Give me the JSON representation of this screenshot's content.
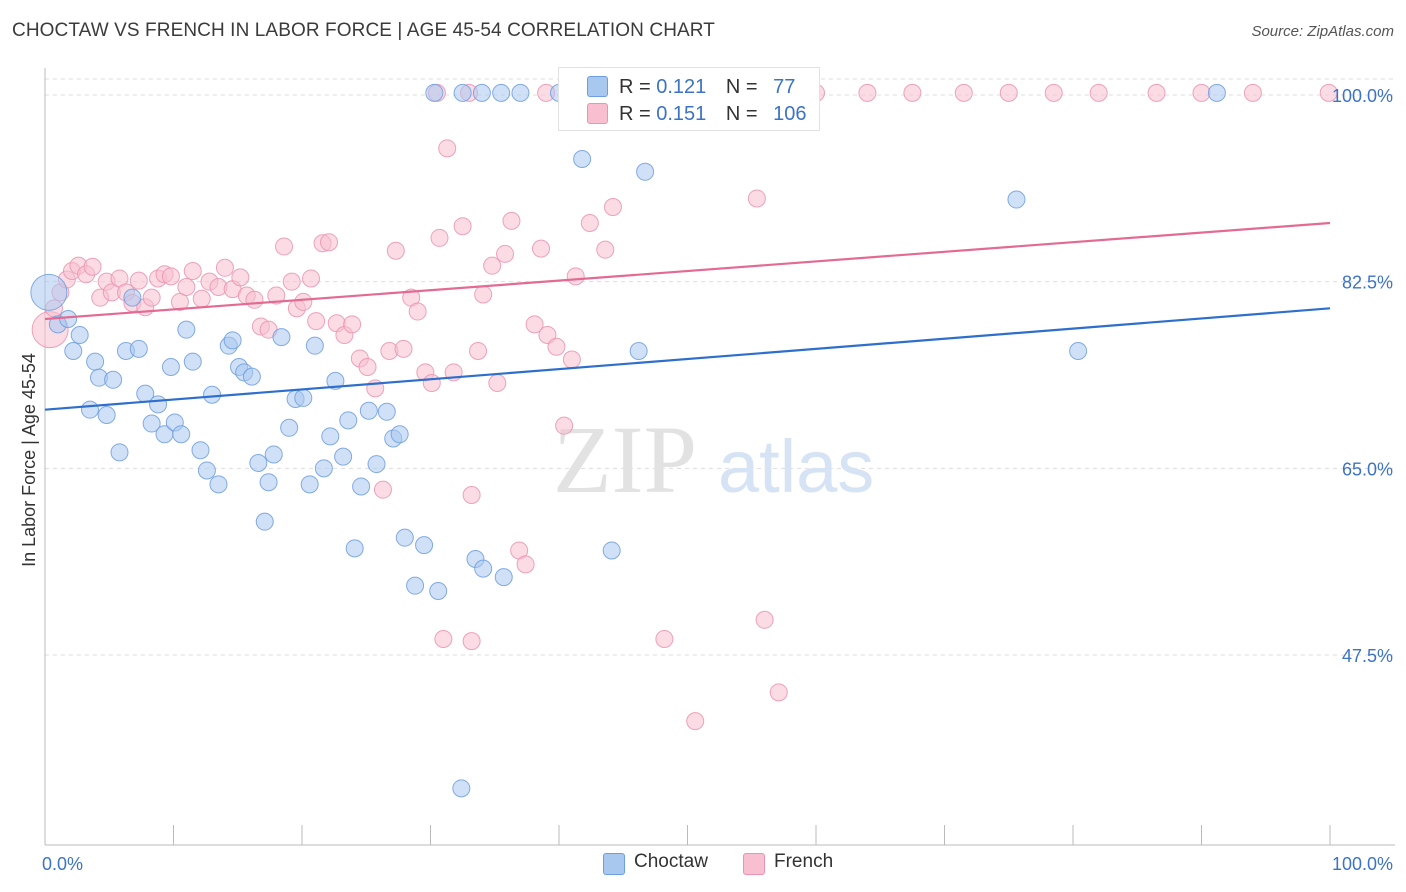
{
  "header": {
    "title": "CHOCTAW VS FRENCH IN LABOR FORCE | AGE 45-54 CORRELATION CHART",
    "source": "Source: ZipAtlas.com"
  },
  "watermark": {
    "zip": "ZIP",
    "atlas": "atlas"
  },
  "legend": {
    "choctaw": {
      "r_label": "R =",
      "r_value": "0.121",
      "n_label": "N =",
      "n_value": "77"
    },
    "french": {
      "r_label": "R =",
      "r_value": "0.151",
      "n_label": "N =",
      "n_value": "106"
    }
  },
  "bottom_legend": {
    "choctaw": "Choctaw",
    "french": "French"
  },
  "colors": {
    "choctaw_fill": "#a9c8f0",
    "choctaw_stroke": "#6d9ee0",
    "choctaw_line": "#2f6fcc",
    "french_fill": "#f7bfd0",
    "french_stroke": "#eb93b0",
    "french_line": "#e36b93",
    "tick_label": "#3d73c5",
    "grid": "#dddddd"
  },
  "chart_data": {
    "type": "scatter",
    "title": "CHOCTAW VS FRENCH IN LABOR FORCE | AGE 45-54 CORRELATION CHART",
    "xlabel": "",
    "ylabel": "In Labor Force | Age 45-54",
    "xlim": [
      0,
      100
    ],
    "ylim": [
      32.5,
      102
    ],
    "x_tick_labels": [
      "0.0%",
      "100.0%"
    ],
    "y_ticks": [
      47.5,
      65.0,
      82.5,
      100.0
    ],
    "y_tick_labels": [
      "47.5%",
      "65.0%",
      "82.5%",
      "100.0%"
    ],
    "grid": true,
    "legend_position": "top-center",
    "series": [
      {
        "name": "Choctaw",
        "r": 0.121,
        "n": 77,
        "trend": {
          "x": [
            0,
            100
          ],
          "y": [
            70.5,
            80.0
          ]
        },
        "points": [
          [
            0.3,
            81.5
          ],
          [
            1.0,
            78.5
          ],
          [
            1.8,
            79.0
          ],
          [
            2.2,
            76.0
          ],
          [
            2.7,
            77.5
          ],
          [
            3.5,
            70.5
          ],
          [
            3.9,
            75.0
          ],
          [
            4.2,
            73.5
          ],
          [
            4.8,
            70.0
          ],
          [
            5.3,
            73.3
          ],
          [
            5.8,
            66.5
          ],
          [
            6.3,
            76.0
          ],
          [
            6.8,
            81.0
          ],
          [
            7.3,
            76.2
          ],
          [
            7.8,
            72.0
          ],
          [
            8.3,
            69.2
          ],
          [
            8.8,
            71.0
          ],
          [
            9.3,
            68.2
          ],
          [
            9.8,
            74.5
          ],
          [
            10.1,
            69.3
          ],
          [
            10.6,
            68.2
          ],
          [
            11.0,
            78.0
          ],
          [
            11.5,
            75.0
          ],
          [
            12.1,
            66.7
          ],
          [
            12.6,
            64.8
          ],
          [
            13.0,
            71.9
          ],
          [
            13.5,
            63.5
          ],
          [
            14.3,
            76.5
          ],
          [
            14.6,
            77.0
          ],
          [
            15.1,
            74.5
          ],
          [
            15.5,
            74.0
          ],
          [
            16.1,
            73.6
          ],
          [
            16.6,
            65.5
          ],
          [
            17.1,
            60.0
          ],
          [
            17.4,
            63.7
          ],
          [
            17.8,
            66.3
          ],
          [
            18.4,
            77.3
          ],
          [
            19.0,
            68.8
          ],
          [
            19.5,
            71.5
          ],
          [
            20.1,
            71.6
          ],
          [
            20.6,
            63.5
          ],
          [
            21.0,
            76.5
          ],
          [
            21.7,
            65.0
          ],
          [
            22.2,
            68.0
          ],
          [
            22.6,
            73.2
          ],
          [
            23.2,
            66.1
          ],
          [
            23.6,
            69.5
          ],
          [
            24.1,
            57.5
          ],
          [
            24.6,
            63.3
          ],
          [
            25.2,
            70.4
          ],
          [
            25.8,
            65.4
          ],
          [
            26.6,
            70.3
          ],
          [
            27.1,
            67.8
          ],
          [
            27.6,
            68.2
          ],
          [
            28.0,
            58.5
          ],
          [
            28.8,
            54.0
          ],
          [
            29.5,
            57.8
          ],
          [
            30.6,
            53.5
          ],
          [
            32.4,
            35.0
          ],
          [
            33.5,
            56.5
          ],
          [
            34.1,
            55.6
          ],
          [
            35.7,
            54.8
          ],
          [
            30.3,
            100.2
          ],
          [
            32.5,
            100.2
          ],
          [
            34.0,
            100.2
          ],
          [
            35.5,
            100.2
          ],
          [
            37.0,
            100.2
          ],
          [
            40.0,
            100.2
          ],
          [
            43.0,
            100.2
          ],
          [
            58.5,
            100.2
          ],
          [
            41.8,
            94.0
          ],
          [
            46.7,
            92.8
          ],
          [
            44.1,
            57.3
          ],
          [
            46.2,
            76.0
          ],
          [
            75.6,
            90.2
          ],
          [
            80.4,
            76.0
          ],
          [
            91.2,
            100.2
          ]
        ]
      },
      {
        "name": "French",
        "r": 0.151,
        "n": 106,
        "trend": {
          "x": [
            0,
            100
          ],
          "y": [
            79.0,
            88.0
          ]
        },
        "points": [
          [
            0.4,
            78.0
          ],
          [
            0.7,
            80.0
          ],
          [
            1.2,
            81.5
          ],
          [
            1.7,
            82.7
          ],
          [
            2.1,
            83.5
          ],
          [
            2.6,
            84.0
          ],
          [
            3.2,
            83.2
          ],
          [
            3.7,
            83.9
          ],
          [
            4.3,
            81.0
          ],
          [
            4.8,
            82.5
          ],
          [
            5.2,
            81.5
          ],
          [
            5.8,
            82.8
          ],
          [
            6.3,
            81.5
          ],
          [
            6.8,
            80.5
          ],
          [
            7.3,
            82.6
          ],
          [
            7.8,
            80.1
          ],
          [
            8.3,
            81.0
          ],
          [
            8.8,
            82.8
          ],
          [
            9.3,
            83.2
          ],
          [
            9.8,
            83.0
          ],
          [
            10.5,
            80.6
          ],
          [
            11.0,
            82.0
          ],
          [
            11.5,
            83.5
          ],
          [
            12.2,
            80.9
          ],
          [
            12.8,
            82.5
          ],
          [
            13.5,
            82.0
          ],
          [
            14.0,
            83.8
          ],
          [
            14.6,
            81.8
          ],
          [
            15.2,
            82.9
          ],
          [
            15.7,
            81.2
          ],
          [
            16.3,
            80.8
          ],
          [
            16.8,
            78.3
          ],
          [
            17.4,
            78.0
          ],
          [
            18.0,
            81.2
          ],
          [
            18.6,
            85.8
          ],
          [
            19.2,
            82.5
          ],
          [
            19.6,
            80.0
          ],
          [
            20.1,
            80.6
          ],
          [
            20.7,
            82.8
          ],
          [
            21.1,
            78.8
          ],
          [
            21.6,
            86.1
          ],
          [
            22.1,
            86.2
          ],
          [
            22.7,
            78.6
          ],
          [
            23.3,
            77.5
          ],
          [
            23.9,
            78.5
          ],
          [
            24.5,
            75.3
          ],
          [
            25.1,
            74.5
          ],
          [
            25.7,
            72.5
          ],
          [
            26.3,
            63.0
          ],
          [
            26.8,
            76.0
          ],
          [
            27.3,
            85.4
          ],
          [
            27.9,
            76.2
          ],
          [
            28.5,
            81.0
          ],
          [
            29.0,
            79.7
          ],
          [
            29.6,
            74.0
          ],
          [
            30.1,
            73.0
          ],
          [
            30.7,
            86.6
          ],
          [
            31.3,
            95.0
          ],
          [
            31.8,
            74.0
          ],
          [
            32.5,
            87.7
          ],
          [
            33.2,
            62.5
          ],
          [
            33.7,
            76.0
          ],
          [
            34.1,
            81.3
          ],
          [
            34.8,
            84.0
          ],
          [
            35.2,
            73.0
          ],
          [
            35.8,
            85.1
          ],
          [
            36.3,
            88.2
          ],
          [
            36.9,
            57.3
          ],
          [
            37.4,
            56.0
          ],
          [
            38.1,
            78.5
          ],
          [
            38.6,
            85.6
          ],
          [
            39.1,
            77.5
          ],
          [
            39.8,
            76.4
          ],
          [
            40.4,
            69.0
          ],
          [
            41.0,
            75.2
          ],
          [
            41.3,
            83.0
          ],
          [
            42.4,
            88.0
          ],
          [
            43.6,
            85.5
          ],
          [
            44.2,
            89.5
          ],
          [
            48.2,
            49.0
          ],
          [
            50.6,
            41.3
          ],
          [
            55.4,
            90.3
          ],
          [
            56.0,
            50.8
          ],
          [
            57.1,
            44.0
          ],
          [
            31.0,
            49.0
          ],
          [
            33.2,
            48.8
          ],
          [
            30.5,
            100.2
          ],
          [
            33.0,
            100.2
          ],
          [
            39.0,
            100.2
          ],
          [
            42.0,
            100.2
          ],
          [
            45.0,
            100.2
          ],
          [
            48.0,
            100.2
          ],
          [
            51.0,
            100.2
          ],
          [
            54.0,
            100.2
          ],
          [
            57.0,
            100.2
          ],
          [
            60.0,
            100.2
          ],
          [
            64.0,
            100.2
          ],
          [
            67.5,
            100.2
          ],
          [
            71.5,
            100.2
          ],
          [
            75.0,
            100.2
          ],
          [
            78.5,
            100.2
          ],
          [
            82.0,
            100.2
          ],
          [
            86.5,
            100.2
          ],
          [
            90.0,
            100.2
          ],
          [
            94.0,
            100.2
          ],
          [
            99.9,
            100.2
          ]
        ]
      }
    ]
  }
}
